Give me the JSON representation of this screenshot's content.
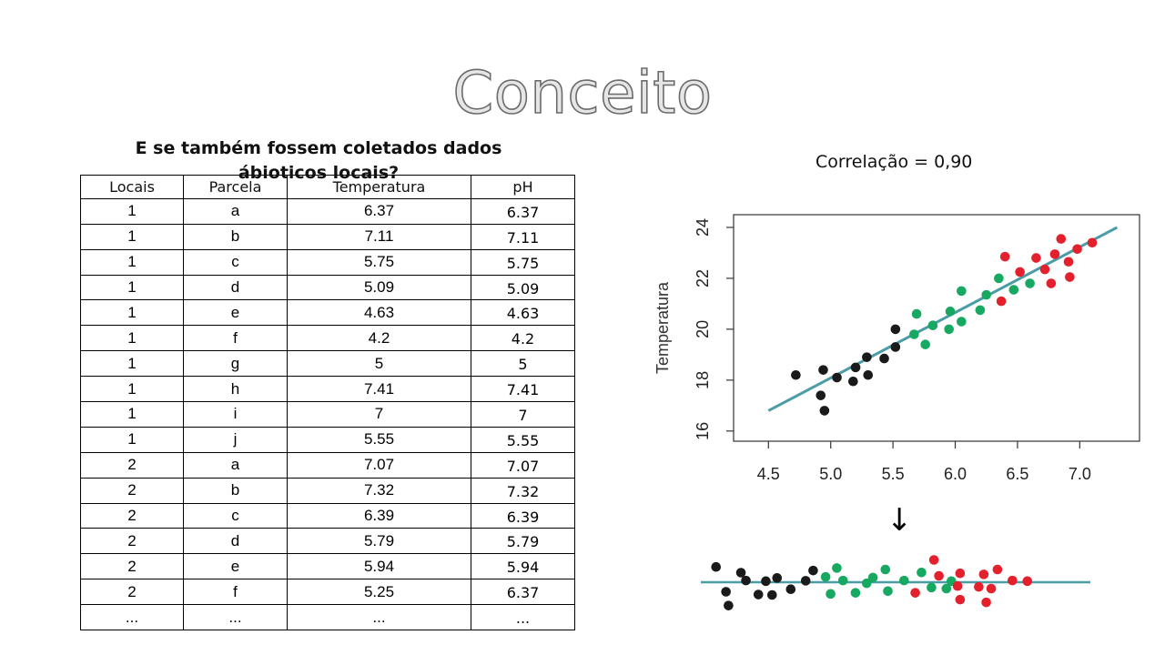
{
  "title": "Conceito",
  "question": "E se também fossem coletados dados ábioticos locais?",
  "correlation_label": "Correlação = 0,90",
  "arrow": "↓",
  "table": {
    "headers": [
      "Locais",
      "Parcela",
      "Temperatura",
      "pH"
    ],
    "rows": [
      [
        "1",
        "a",
        "6.37",
        "6.37"
      ],
      [
        "1",
        "b",
        "7.11",
        "7.11"
      ],
      [
        "1",
        "c",
        "5.75",
        "5.75"
      ],
      [
        "1",
        "d",
        "5.09",
        "5.09"
      ],
      [
        "1",
        "e",
        "4.63",
        "4.63"
      ],
      [
        "1",
        "f",
        "4.2",
        "4.2"
      ],
      [
        "1",
        "g",
        "5",
        "5"
      ],
      [
        "1",
        "h",
        "7.41",
        "7.41"
      ],
      [
        "1",
        "i",
        "7",
        "7"
      ],
      [
        "1",
        "j",
        "5.55",
        "5.55"
      ],
      [
        "2",
        "a",
        "7.07",
        "7.07"
      ],
      [
        "2",
        "b",
        "7.32",
        "7.32"
      ],
      [
        "2",
        "c",
        "6.39",
        "6.39"
      ],
      [
        "2",
        "d",
        "5.79",
        "5.79"
      ],
      [
        "2",
        "e",
        "5.94",
        "5.94"
      ],
      [
        "2",
        "f",
        "5.25",
        "6.37"
      ],
      [
        "...",
        "...",
        "...",
        "..."
      ]
    ]
  },
  "colors": {
    "black": "#1a1a1a",
    "green": "#17a862",
    "red": "#e3202b",
    "line": "#4a9ca6"
  },
  "chart_data": [
    {
      "type": "scatter",
      "ylabel": "Temperatura",
      "xlabel": "",
      "xlim": [
        4.22,
        7.48
      ],
      "ylim": [
        15.6,
        24.5
      ],
      "x_ticks": [
        "4.5",
        "5.0",
        "5.5",
        "6.0",
        "6.5",
        "7.0"
      ],
      "y_ticks": [
        "16",
        "18",
        "20",
        "22",
        "24"
      ],
      "regression_line": {
        "x": [
          4.5,
          7.3
        ],
        "y": [
          16.8,
          24.0
        ]
      },
      "series": [
        {
          "color": "black",
          "points": [
            [
              4.72,
              18.2
            ],
            [
              4.92,
              17.4
            ],
            [
              4.94,
              18.4
            ],
            [
              4.95,
              16.8
            ],
            [
              5.05,
              18.1
            ],
            [
              5.18,
              17.95
            ],
            [
              5.2,
              18.5
            ],
            [
              5.29,
              18.9
            ],
            [
              5.3,
              18.2
            ],
            [
              5.43,
              18.85
            ],
            [
              5.52,
              19.3
            ],
            [
              5.52,
              20.0
            ]
          ]
        },
        {
          "color": "green",
          "points": [
            [
              5.67,
              19.8
            ],
            [
              5.69,
              20.6
            ],
            [
              5.76,
              19.4
            ],
            [
              5.82,
              20.15
            ],
            [
              5.95,
              20.0
            ],
            [
              5.96,
              20.7
            ],
            [
              6.05,
              20.3
            ],
            [
              6.05,
              21.5
            ],
            [
              6.2,
              20.75
            ],
            [
              6.25,
              21.35
            ],
            [
              6.35,
              22.0
            ],
            [
              6.47,
              21.55
            ],
            [
              6.6,
              21.8
            ]
          ]
        },
        {
          "color": "red",
          "points": [
            [
              6.37,
              21.1
            ],
            [
              6.4,
              22.85
            ],
            [
              6.52,
              22.25
            ],
            [
              6.65,
              22.8
            ],
            [
              6.72,
              22.35
            ],
            [
              6.77,
              21.8
            ],
            [
              6.8,
              22.95
            ],
            [
              6.85,
              23.55
            ],
            [
              6.91,
              22.65
            ],
            [
              6.92,
              22.05
            ],
            [
              6.98,
              23.15
            ],
            [
              7.1,
              23.4
            ]
          ]
        }
      ]
    },
    {
      "type": "scatter",
      "title": "",
      "xlim": [
        4.22,
        7.48
      ],
      "ylim": [
        -1.2,
        1.2
      ],
      "residual_line_y": 0,
      "series": [
        {
          "color": "black",
          "points": [
            [
              4.62,
              0.72
            ],
            [
              4.7,
              -0.45
            ],
            [
              4.72,
              -1.1
            ],
            [
              4.82,
              0.45
            ],
            [
              4.86,
              0.08
            ],
            [
              4.96,
              -0.58
            ],
            [
              5.02,
              0.05
            ],
            [
              5.07,
              -0.6
            ],
            [
              5.11,
              0.2
            ],
            [
              5.22,
              -0.33
            ],
            [
              5.34,
              0.07
            ],
            [
              5.4,
              0.55
            ]
          ]
        },
        {
          "color": "green",
          "points": [
            [
              5.5,
              0.25
            ],
            [
              5.54,
              -0.55
            ],
            [
              5.59,
              0.67
            ],
            [
              5.64,
              0.08
            ],
            [
              5.74,
              -0.5
            ],
            [
              5.83,
              -0.05
            ],
            [
              5.88,
              0.22
            ],
            [
              5.98,
              0.6
            ],
            [
              6.0,
              -0.42
            ],
            [
              6.13,
              0.08
            ],
            [
              6.27,
              0.46
            ],
            [
              6.35,
              -0.25
            ],
            [
              6.47,
              -0.3
            ],
            [
              6.51,
              0.05
            ]
          ]
        },
        {
          "color": "red",
          "points": [
            [
              6.22,
              -0.5
            ],
            [
              6.37,
              1.05
            ],
            [
              6.41,
              0.3
            ],
            [
              6.56,
              -0.18
            ],
            [
              6.58,
              0.42
            ],
            [
              6.58,
              -0.82
            ],
            [
              6.73,
              -0.22
            ],
            [
              6.77,
              0.37
            ],
            [
              6.79,
              -0.95
            ],
            [
              6.83,
              -0.3
            ],
            [
              6.88,
              0.6
            ],
            [
              7.0,
              0.08
            ],
            [
              7.12,
              0.05
            ]
          ]
        }
      ]
    }
  ]
}
